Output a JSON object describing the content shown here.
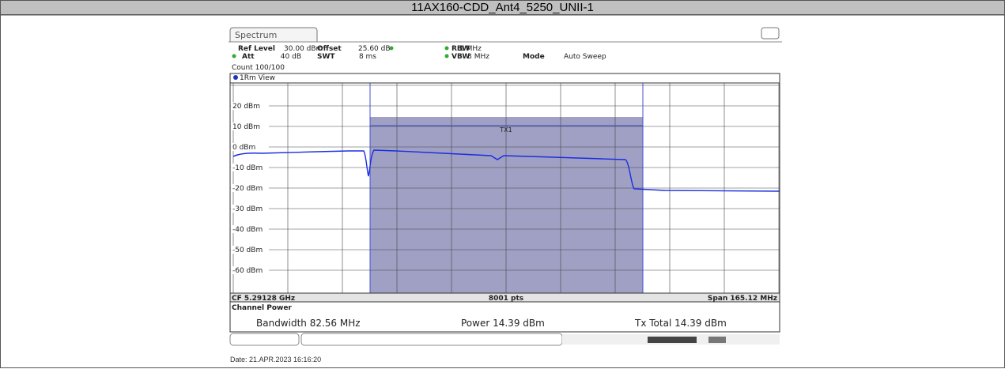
{
  "header": {
    "title": "11AX160-CDD_Ant4_5250_UNII-1"
  },
  "analyzer": {
    "tab": "Spectrum",
    "settings": [
      [
        {
          "label": "Ref Level",
          "value": "30.00 dBm"
        },
        {
          "label": "Offset",
          "value": "25.60 dB"
        },
        {
          "label": "RBW",
          "value": "1 MHz"
        }
      ],
      [
        {
          "label": "Att",
          "value": "40 dB"
        },
        {
          "label": "SWT",
          "value": "8 ms"
        },
        {
          "label": "VBW",
          "value": "3 MHz"
        },
        {
          "label": "Mode",
          "value": "Auto Sweep"
        }
      ]
    ],
    "count": "Count 100/100",
    "view": "1Rm View",
    "y_labels": [
      "20 dBm",
      "10 dBm",
      "0 dBm",
      "-10 dBm",
      "-20 dBm",
      "-30 dBm",
      "-40 dBm",
      "-50 dBm",
      "-60 dBm"
    ],
    "band_label": "TX1",
    "footer": {
      "center": "CF 5.29128 GHz",
      "points": "8001 pts",
      "span": "Span 165.12 MHz"
    },
    "channel_power": {
      "heading": "Channel Power",
      "bandwidth": "Bandwidth 82.56 MHz",
      "power": "Power 14.39 dBm",
      "total": "Tx Total 14.39 dBm"
    }
  },
  "date": "Date: 21.APR.2023 16:16:20"
}
